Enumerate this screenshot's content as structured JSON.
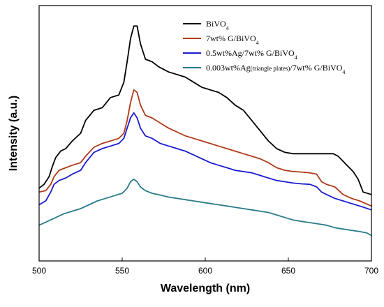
{
  "chart_data": {
    "type": "line",
    "xlabel": "Wavelength (nm)",
    "ylabel": "Intensity (a.u.)",
    "xlim": [
      500,
      700
    ],
    "x_ticks": [
      500,
      550,
      600,
      650,
      700
    ],
    "y_ticks_shown": false,
    "grid": false,
    "legend_position": "top-right",
    "series": [
      {
        "name": "BiVO4",
        "label_main": "BiVO",
        "label_sub": "4",
        "label_tail": "",
        "color": "#000000",
        "points": [
          [
            500,
            0.285
          ],
          [
            503,
            0.3
          ],
          [
            506,
            0.33
          ],
          [
            508,
            0.37
          ],
          [
            510,
            0.405
          ],
          [
            513,
            0.43
          ],
          [
            516,
            0.44
          ],
          [
            520,
            0.47
          ],
          [
            525,
            0.5
          ],
          [
            528,
            0.55
          ],
          [
            533,
            0.59
          ],
          [
            538,
            0.6
          ],
          [
            543,
            0.64
          ],
          [
            548,
            0.65
          ],
          [
            551,
            0.7
          ],
          [
            553,
            0.78
          ],
          [
            555,
            0.87
          ],
          [
            557,
            0.92
          ],
          [
            559,
            0.92
          ],
          [
            561,
            0.85
          ],
          [
            564,
            0.79
          ],
          [
            568,
            0.78
          ],
          [
            572,
            0.76
          ],
          [
            578,
            0.74
          ],
          [
            583,
            0.73
          ],
          [
            588,
            0.72
          ],
          [
            593,
            0.7
          ],
          [
            598,
            0.68
          ],
          [
            603,
            0.67
          ],
          [
            608,
            0.66
          ],
          [
            613,
            0.64
          ],
          [
            618,
            0.61
          ],
          [
            623,
            0.59
          ],
          [
            628,
            0.55
          ],
          [
            633,
            0.51
          ],
          [
            638,
            0.47
          ],
          [
            643,
            0.44
          ],
          [
            648,
            0.425
          ],
          [
            653,
            0.42
          ],
          [
            658,
            0.42
          ],
          [
            663,
            0.42
          ],
          [
            668,
            0.42
          ],
          [
            673,
            0.42
          ],
          [
            677,
            0.42
          ],
          [
            680,
            0.41
          ],
          [
            683,
            0.39
          ],
          [
            686,
            0.37
          ],
          [
            689,
            0.35
          ],
          [
            692,
            0.32
          ],
          [
            695,
            0.27
          ],
          [
            700,
            0.26
          ]
        ]
      },
      {
        "name": "7wt% G/BiVO4",
        "label_main": "7wt% G/BiVO",
        "label_sub": "4",
        "label_tail": "",
        "color": "#b03a1a",
        "points": [
          [
            500,
            0.27
          ],
          [
            504,
            0.275
          ],
          [
            507,
            0.3
          ],
          [
            509,
            0.33
          ],
          [
            512,
            0.355
          ],
          [
            516,
            0.365
          ],
          [
            520,
            0.375
          ],
          [
            525,
            0.385
          ],
          [
            528,
            0.41
          ],
          [
            533,
            0.445
          ],
          [
            538,
            0.46
          ],
          [
            543,
            0.47
          ],
          [
            548,
            0.48
          ],
          [
            551,
            0.5
          ],
          [
            553,
            0.55
          ],
          [
            555,
            0.62
          ],
          [
            557,
            0.67
          ],
          [
            559,
            0.66
          ],
          [
            561,
            0.61
          ],
          [
            564,
            0.57
          ],
          [
            568,
            0.56
          ],
          [
            573,
            0.54
          ],
          [
            578,
            0.52
          ],
          [
            583,
            0.505
          ],
          [
            588,
            0.49
          ],
          [
            593,
            0.48
          ],
          [
            598,
            0.47
          ],
          [
            603,
            0.46
          ],
          [
            608,
            0.45
          ],
          [
            613,
            0.44
          ],
          [
            618,
            0.43
          ],
          [
            623,
            0.42
          ],
          [
            628,
            0.41
          ],
          [
            633,
            0.4
          ],
          [
            638,
            0.385
          ],
          [
            643,
            0.365
          ],
          [
            648,
            0.355
          ],
          [
            653,
            0.35
          ],
          [
            658,
            0.348
          ],
          [
            663,
            0.345
          ],
          [
            667,
            0.34
          ],
          [
            670,
            0.31
          ],
          [
            673,
            0.3
          ],
          [
            678,
            0.29
          ],
          [
            683,
            0.26
          ],
          [
            688,
            0.245
          ],
          [
            693,
            0.235
          ],
          [
            700,
            0.215
          ]
        ]
      },
      {
        "name": "0.5wt%Ag/7wt% G/BiVO4",
        "label_main": "0.5wt%Ag/7wt% G/BiVO",
        "label_sub": "4",
        "label_tail": "",
        "color": "#1a1ad0",
        "points": [
          [
            500,
            0.22
          ],
          [
            504,
            0.235
          ],
          [
            507,
            0.27
          ],
          [
            509,
            0.3
          ],
          [
            512,
            0.315
          ],
          [
            516,
            0.325
          ],
          [
            520,
            0.34
          ],
          [
            525,
            0.355
          ],
          [
            528,
            0.385
          ],
          [
            533,
            0.425
          ],
          [
            538,
            0.44
          ],
          [
            543,
            0.45
          ],
          [
            548,
            0.46
          ],
          [
            551,
            0.48
          ],
          [
            553,
            0.52
          ],
          [
            555,
            0.56
          ],
          [
            557,
            0.58
          ],
          [
            559,
            0.56
          ],
          [
            561,
            0.52
          ],
          [
            564,
            0.49
          ],
          [
            568,
            0.48
          ],
          [
            573,
            0.46
          ],
          [
            578,
            0.45
          ],
          [
            583,
            0.44
          ],
          [
            588,
            0.43
          ],
          [
            593,
            0.415
          ],
          [
            598,
            0.4
          ],
          [
            603,
            0.385
          ],
          [
            608,
            0.375
          ],
          [
            613,
            0.365
          ],
          [
            618,
            0.355
          ],
          [
            623,
            0.35
          ],
          [
            628,
            0.345
          ],
          [
            633,
            0.335
          ],
          [
            638,
            0.325
          ],
          [
            643,
            0.315
          ],
          [
            648,
            0.31
          ],
          [
            653,
            0.305
          ],
          [
            658,
            0.302
          ],
          [
            663,
            0.3
          ],
          [
            667,
            0.29
          ],
          [
            670,
            0.27
          ],
          [
            673,
            0.26
          ],
          [
            678,
            0.245
          ],
          [
            683,
            0.235
          ],
          [
            688,
            0.225
          ],
          [
            693,
            0.215
          ],
          [
            700,
            0.2
          ]
        ]
      },
      {
        "name": "0.003wt%Ag(triangle plates)/7wt% G/BiVO4",
        "label_main": "0.003wt%Ag",
        "label_small": "(triangle plates)",
        "label_rest": "/7wt% G/BiVO",
        "label_sub": "4",
        "color": "#2a7b8c",
        "points": [
          [
            500,
            0.14
          ],
          [
            505,
            0.155
          ],
          [
            510,
            0.17
          ],
          [
            515,
            0.185
          ],
          [
            520,
            0.195
          ],
          [
            525,
            0.205
          ],
          [
            530,
            0.22
          ],
          [
            535,
            0.235
          ],
          [
            540,
            0.245
          ],
          [
            545,
            0.255
          ],
          [
            550,
            0.265
          ],
          [
            553,
            0.285
          ],
          [
            555,
            0.31
          ],
          [
            557,
            0.32
          ],
          [
            559,
            0.31
          ],
          [
            561,
            0.29
          ],
          [
            564,
            0.275
          ],
          [
            568,
            0.265
          ],
          [
            573,
            0.258
          ],
          [
            578,
            0.25
          ],
          [
            583,
            0.245
          ],
          [
            588,
            0.24
          ],
          [
            593,
            0.235
          ],
          [
            598,
            0.23
          ],
          [
            603,
            0.225
          ],
          [
            608,
            0.22
          ],
          [
            613,
            0.215
          ],
          [
            618,
            0.21
          ],
          [
            623,
            0.205
          ],
          [
            628,
            0.2
          ],
          [
            633,
            0.195
          ],
          [
            638,
            0.19
          ],
          [
            643,
            0.18
          ],
          [
            648,
            0.17
          ],
          [
            653,
            0.16
          ],
          [
            658,
            0.155
          ],
          [
            663,
            0.15
          ],
          [
            668,
            0.145
          ],
          [
            673,
            0.14
          ],
          [
            678,
            0.13
          ],
          [
            683,
            0.125
          ],
          [
            688,
            0.12
          ],
          [
            693,
            0.115
          ],
          [
            697,
            0.11
          ],
          [
            700,
            0.1
          ]
        ]
      }
    ]
  }
}
